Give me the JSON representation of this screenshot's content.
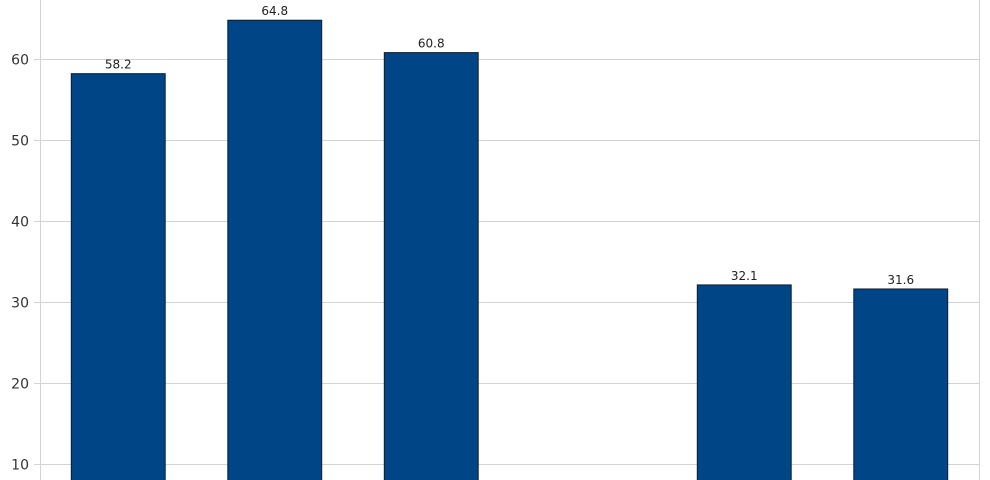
{
  "chart_data": {
    "type": "bar",
    "categories": [
      "",
      "",
      "",
      "",
      "",
      ""
    ],
    "values": [
      58.2,
      64.8,
      60.8,
      null,
      32.1,
      31.6
    ],
    "data_labels": [
      "58.2",
      "64.8",
      "60.8",
      "",
      "32.1",
      "31.6"
    ],
    "title": "",
    "xlabel": "",
    "ylabel": "",
    "y_ticks": [
      10,
      20,
      30,
      40,
      50,
      60
    ],
    "y_visible_range": [
      8.0,
      67.3
    ],
    "grid": true,
    "legend": "none",
    "bar_color": "#004586",
    "bar_edge_color": "#0b1d33",
    "grid_color": "#d3d3d3"
  }
}
